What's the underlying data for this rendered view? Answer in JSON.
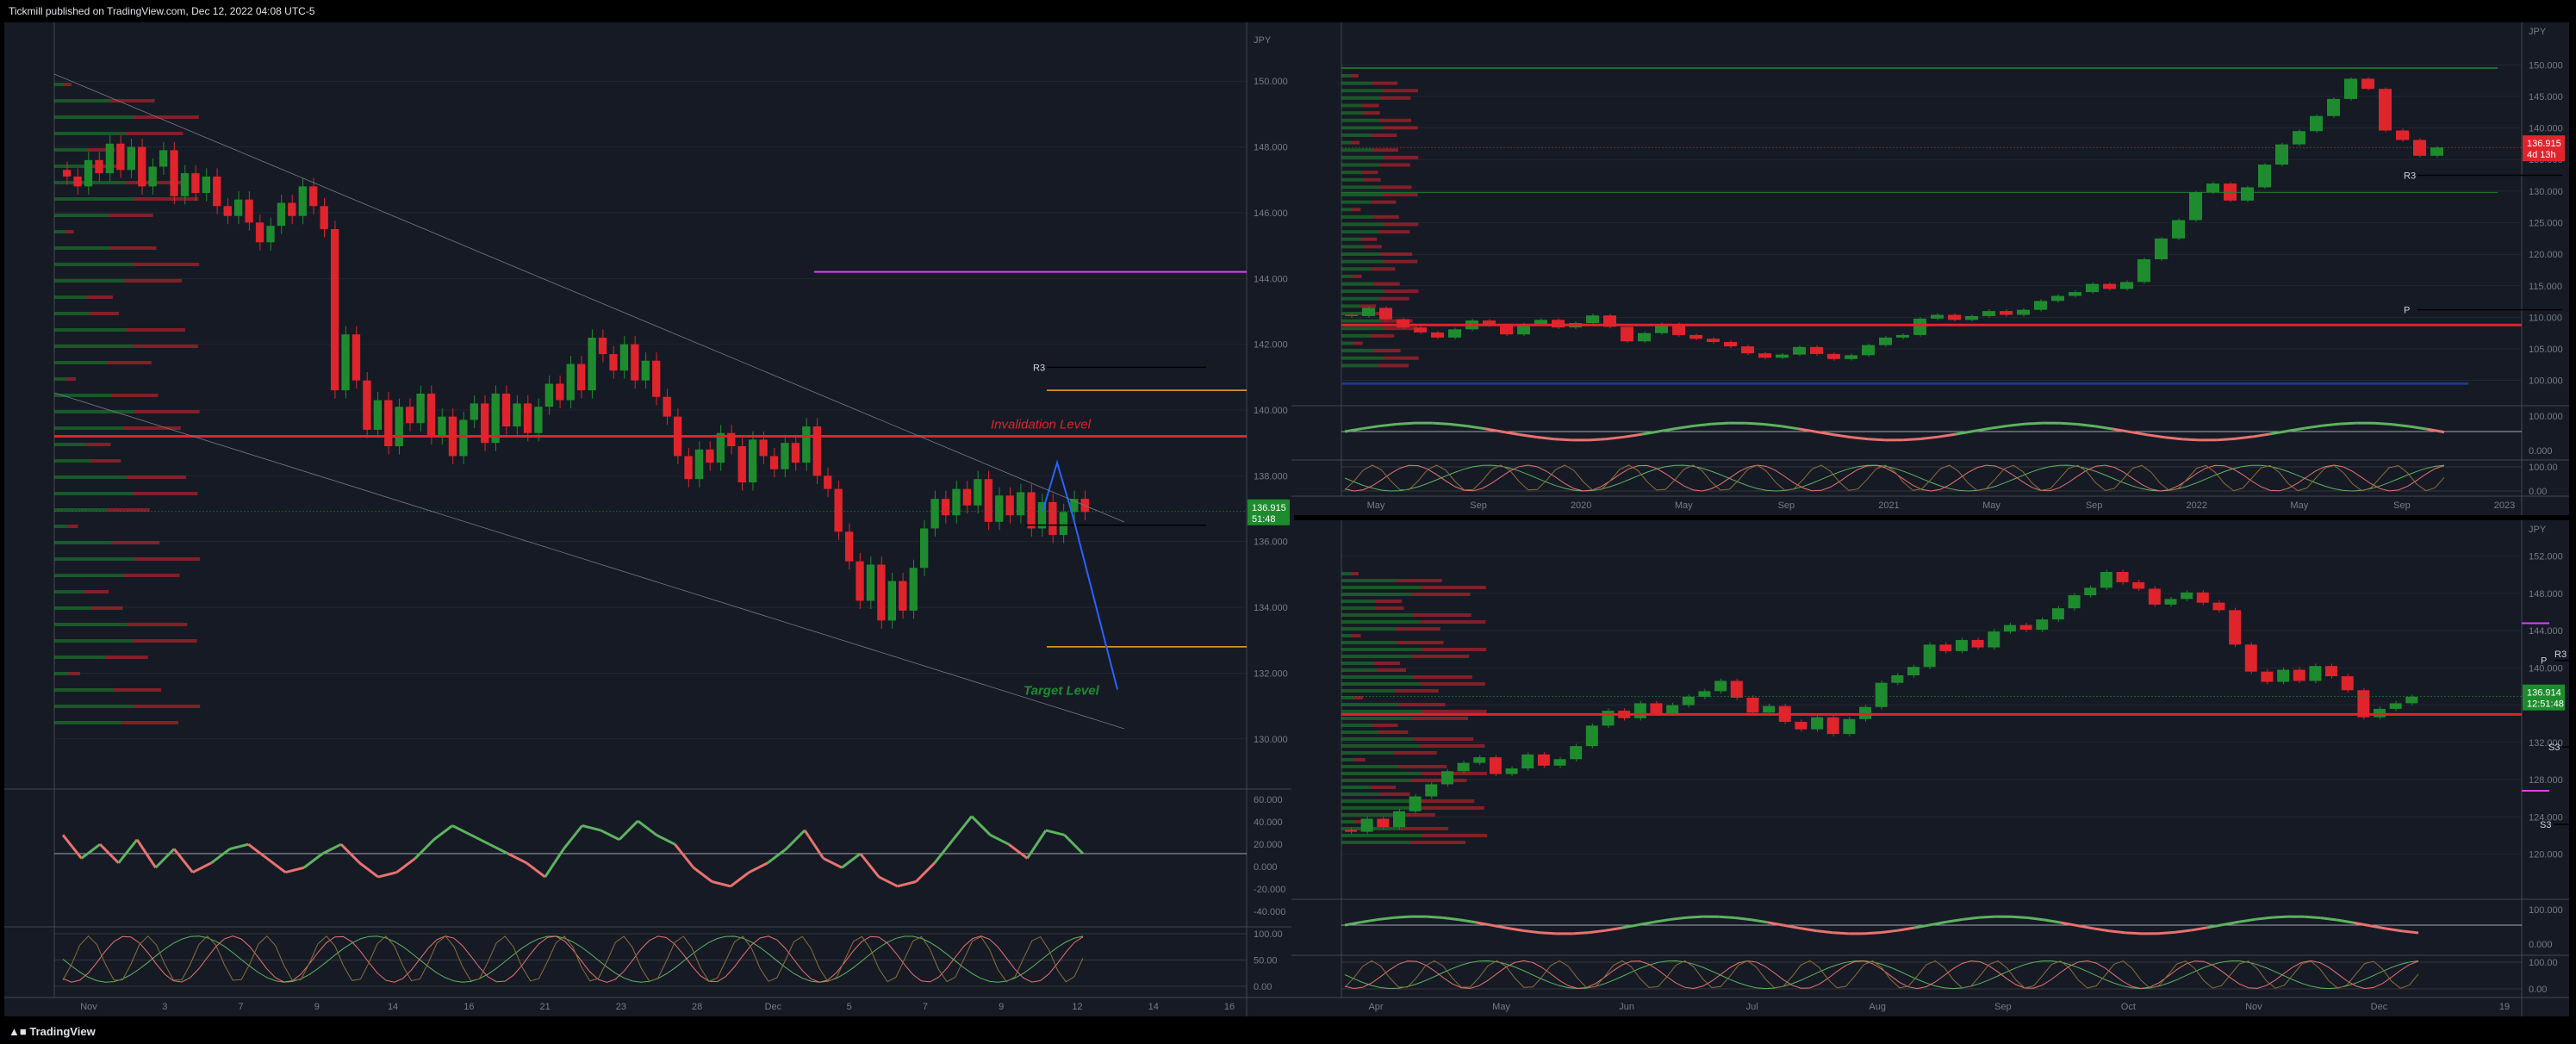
{
  "header": {
    "published": "Tickmill published on TradingView.com, Dec 12, 2022 04:08 UTC-5"
  },
  "footer": {
    "brand": "TradingView"
  },
  "colors": {
    "up": "#1e8c2e",
    "down": "#e0242c",
    "bg": "#161a25",
    "grid": "#2a2e39",
    "axis_text": "#787b86"
  },
  "chart_data": [
    {
      "type": "candlestick",
      "name_ref": "left",
      "currency": "JPY",
      "price_ticks": [
        "150.000",
        "148.000",
        "146.000",
        "144.000",
        "142.000",
        "140.000",
        "138.000",
        "136.000",
        "134.000",
        "132.000",
        "130.000"
      ],
      "ylim": [
        129,
        151
      ],
      "x_ticks": [
        "Nov",
        "3",
        "7",
        "9",
        "14",
        "16",
        "21",
        "23",
        "28",
        "Dec",
        "5",
        "7",
        "9",
        "12",
        "14",
        "16"
      ],
      "last_price": "136.915",
      "countdown": "51:48",
      "annotations": {
        "invalidation": "Invalidation Level",
        "target": "Target Level",
        "r3": "R3"
      },
      "levels": {
        "invalidation": 139.2,
        "magenta": 144.2,
        "r3": 141.3,
        "orange_top": 140.6,
        "orange_bottom": 132.8,
        "black_short": 136.5
      },
      "closes": [
        147.1,
        146.8,
        147.6,
        147.2,
        148.1,
        147.3,
        148.0,
        146.8,
        147.4,
        147.9,
        146.5,
        147.2,
        146.6,
        147.1,
        146.2,
        145.9,
        146.4,
        145.7,
        145.1,
        145.6,
        146.3,
        145.9,
        146.8,
        146.2,
        145.5,
        140.6,
        142.3,
        140.9,
        139.4,
        140.3,
        138.9,
        140.1,
        139.6,
        140.5,
        139.2,
        139.8,
        138.6,
        139.7,
        140.2,
        139.0,
        140.5,
        139.5,
        140.2,
        139.3,
        140.1,
        140.8,
        140.3,
        141.4,
        140.6,
        142.2,
        141.7,
        141.2,
        142.0,
        140.9,
        141.5,
        140.4,
        139.8,
        138.6,
        137.9,
        138.8,
        138.4,
        139.3,
        138.9,
        137.8,
        139.1,
        138.6,
        138.2,
        139.0,
        138.4,
        139.5,
        138.0,
        137.6,
        136.3,
        135.4,
        134.2,
        135.3,
        133.6,
        134.8,
        133.9,
        135.2,
        136.4,
        137.3,
        136.8,
        137.6,
        137.1,
        137.9,
        136.6,
        137.4,
        136.8,
        137.5,
        136.4,
        137.2,
        136.2,
        136.9,
        137.3,
        136.9
      ],
      "osc1_values": [
        20,
        -5,
        10,
        -10,
        15,
        -15,
        5,
        -20,
        -10,
        5,
        10,
        -5,
        -20,
        -15,
        0,
        10,
        -10,
        -25,
        -20,
        -5,
        15,
        30,
        20,
        10,
        0,
        -10,
        -25,
        5,
        30,
        25,
        15,
        35,
        20,
        10,
        -15,
        -30,
        -35,
        -20,
        -10,
        5,
        25,
        -5,
        -15,
        0,
        -25,
        -35,
        -30,
        -10,
        15,
        40,
        20,
        10,
        -5,
        25,
        20,
        0
      ],
      "osc1_ticks": [
        "60.000",
        "40.000",
        "20.000",
        "0.000",
        "-20.000",
        "-40.000"
      ],
      "osc1_ylim": [
        -60,
        60
      ],
      "osc2_ticks": [
        "100.00",
        "50.00",
        "0.00"
      ],
      "projection": [
        136.9,
        138.4,
        136.8,
        131.5
      ]
    },
    {
      "type": "candlestick",
      "name_ref": "top-right",
      "currency": "JPY",
      "price_ticks": [
        "150.000",
        "145.000",
        "140.000",
        "135.000",
        "130.000",
        "125.000",
        "120.000",
        "115.000",
        "110.000",
        "105.000",
        "100.000"
      ],
      "ylim": [
        96,
        154
      ],
      "x_ticks": [
        "May",
        "Sep",
        "2020",
        "May",
        "Sep",
        "2021",
        "May",
        "Sep",
        "2022",
        "May",
        "Sep",
        "2023"
      ],
      "last_price": "136.915",
      "countdown": "4d 13h",
      "annotations": {
        "r3": "R3",
        "p": "P"
      },
      "levels": {
        "green_top": 149.5,
        "red": 108.8,
        "blue": 99.5,
        "r3": 132.5,
        "p": 111.2,
        "green_low": 129.8
      },
      "closes": [
        110.2,
        111.5,
        109.7,
        108.4,
        107.6,
        106.8,
        108.1,
        109.5,
        108.7,
        107.3,
        108.9,
        109.6,
        108.4,
        109.1,
        110.3,
        108.5,
        106.2,
        107.5,
        108.9,
        107.2,
        106.6,
        106.1,
        105.4,
        104.3,
        103.6,
        104.1,
        105.3,
        104.2,
        103.4,
        104.0,
        105.6,
        106.8,
        107.2,
        109.8,
        110.4,
        109.6,
        110.2,
        111.0,
        110.4,
        111.2,
        112.6,
        113.4,
        114.0,
        115.3,
        114.5,
        115.6,
        119.2,
        122.5,
        125.4,
        129.8,
        131.2,
        128.5,
        130.6,
        134.2,
        137.4,
        139.5,
        141.9,
        144.6,
        147.8,
        146.2,
        139.6,
        138.1,
        135.6,
        136.9
      ],
      "osc1_ticks": [
        "100.000",
        "0.000"
      ],
      "osc2_ticks": [
        "100.00",
        "0.00"
      ]
    },
    {
      "type": "candlestick",
      "name_ref": "bottom-right",
      "currency": "JPY",
      "price_ticks": [
        "152.000",
        "148.000",
        "144.000",
        "140.000",
        "136.000",
        "132.000",
        "128.000",
        "124.000",
        "120.000"
      ],
      "ylim": [
        117,
        154
      ],
      "x_ticks": [
        "Apr",
        "May",
        "Jun",
        "Jul",
        "Aug",
        "Sep",
        "Oct",
        "Nov",
        "Dec",
        "19"
      ],
      "last_price": "136.914",
      "countdown": "12:51:48",
      "annotations": {
        "r3": "R3",
        "p": "P",
        "s3": "S3"
      },
      "levels": {
        "red": 135.0,
        "magenta_top": 144.8,
        "magenta_bottom": 126.8,
        "r3": 141.5,
        "p": 140.8,
        "s3a": 131.5,
        "s3b": 123.2
      },
      "closes": [
        122.4,
        123.8,
        122.9,
        124.6,
        126.2,
        127.5,
        128.9,
        129.8,
        130.4,
        128.6,
        129.2,
        130.7,
        129.5,
        130.2,
        131.6,
        133.8,
        135.4,
        134.6,
        136.2,
        135.1,
        136.0,
        136.9,
        137.5,
        138.6,
        136.8,
        135.2,
        135.9,
        134.2,
        133.4,
        134.7,
        132.9,
        134.5,
        135.8,
        138.4,
        139.2,
        140.1,
        142.5,
        141.8,
        143.0,
        142.2,
        143.9,
        144.6,
        144.1,
        145.2,
        146.4,
        147.8,
        148.6,
        150.3,
        149.2,
        148.5,
        146.8,
        147.4,
        148.1,
        147.0,
        146.2,
        142.5,
        139.6,
        138.5,
        139.8,
        138.6,
        140.2,
        139.1,
        137.6,
        134.7,
        135.6,
        136.2,
        136.9
      ],
      "osc1_ticks": [
        "100.000",
        "0.000"
      ],
      "osc2_ticks": [
        "100.00",
        "0.00"
      ]
    }
  ]
}
